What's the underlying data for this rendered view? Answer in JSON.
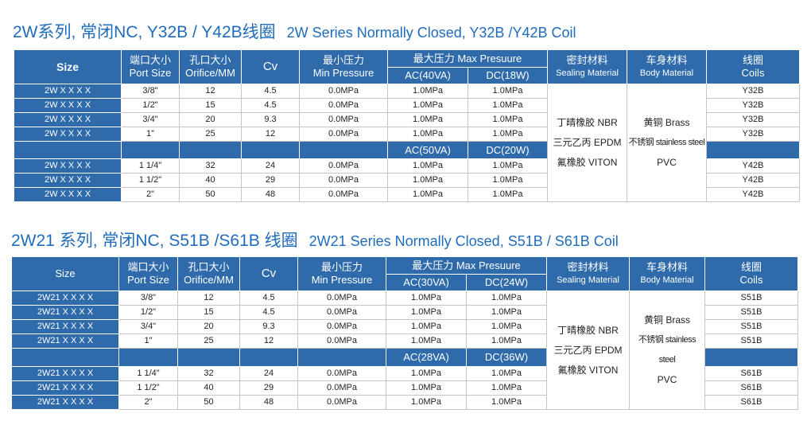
{
  "tables": [
    {
      "title_cn": "2W系列, 常闭NC, Y32B / Y42B线圈",
      "title_en": "2W Series Normally Closed, Y32B /Y42B Coil",
      "headers": {
        "size": "Size",
        "port_cn": "端口大小",
        "port_en": "Port Size",
        "orifice_cn": "孔口大小",
        "orifice_en": "Orifice/MM",
        "cv": "Cv",
        "min_cn": "最小压力",
        "min_en": "Min Pressure",
        "max": "最大压力  Max Presuure",
        "ac": "AC(40VA)",
        "dc": "DC(18W)",
        "seal_cn": "密封材料",
        "seal_en": "Sealing Material",
        "body_cn": "车身材料",
        "body_en": "Body Material",
        "coil_cn": "线圈",
        "coil_en": "Coils"
      },
      "group1": [
        [
          "2W X X X X",
          "3/8\"",
          "12",
          "4.5",
          "0.0MPa",
          "1.0MPa",
          "1.0MPa",
          "Y32B"
        ],
        [
          "2W X X X X",
          "1/2\"",
          "15",
          "4.5",
          "0.0MPa",
          "1.0MPa",
          "1.0MPa",
          "Y32B"
        ],
        [
          "2W X X X X",
          "3/4\"",
          "20",
          "9.3",
          "0.0MPa",
          "1.0MPa",
          "1.0MPa",
          "Y32B"
        ],
        [
          "2W X X X X",
          "1\"",
          "25",
          "12",
          "0.0MPa",
          "1.0MPa",
          "1.0MPa",
          "Y32B"
        ]
      ],
      "mid": {
        "ac": "AC(50VA)",
        "dc": "DC(20W)"
      },
      "group2": [
        [
          "2W X X X X",
          "1 1/4\"",
          "32",
          "24",
          "0.0MPa",
          "1.0MPa",
          "1.0MPa",
          "Y42B"
        ],
        [
          "2W X X X X",
          "1 1/2\"",
          "40",
          "29",
          "0.0MPa",
          "1.0MPa",
          "1.0MPa",
          "Y42B"
        ],
        [
          "2W X X X X",
          "2\"",
          "50",
          "48",
          "0.0MPa",
          "1.0MPa",
          "1.0MPa",
          "Y42B"
        ]
      ],
      "sealing": [
        "丁晴橡胶 NBR",
        "三元乙丙 EPDM",
        "氟橡胶 VITON"
      ],
      "body": [
        "黄铜 Brass",
        "不锈钢 stainless steel",
        "PVC"
      ]
    },
    {
      "title_cn": "2W21 系列, 常闭NC, S51B /S61B 线圈",
      "title_en": "2W21 Series Normally Closed, S51B / S61B Coil",
      "headers": {
        "size": "Size",
        "port_cn": "端口大小",
        "port_en": "Port Size",
        "orifice_cn": "孔口大小",
        "orifice_en": "Orifice/MM",
        "cv": "Cv",
        "min_cn": "最小压力",
        "min_en": "Min Pressure",
        "max": "最大压力  Max Presuure",
        "ac": "AC(30VA)",
        "dc": "DC(24W)",
        "seal_cn": "密封材料",
        "seal_en": "Sealing Material",
        "body_cn": "车身材料",
        "body_en": "Body Material",
        "coil_cn": "线圈",
        "coil_en": "Coils"
      },
      "group1": [
        [
          "2W21 X X X X",
          "3/8\"",
          "12",
          "4.5",
          "0.0MPa",
          "1.0MPa",
          "1.0MPa",
          "S51B"
        ],
        [
          "2W21 X X X X",
          "1/2\"",
          "15",
          "4.5",
          "0.0MPa",
          "1.0MPa",
          "1.0MPa",
          "S51B"
        ],
        [
          "2W21 X X X X",
          "3/4\"",
          "20",
          "9.3",
          "0.0MPa",
          "1.0MPa",
          "1.0MPa",
          "S51B"
        ],
        [
          "2W21 X X X X",
          "1\"",
          "25",
          "12",
          "0.0MPa",
          "1.0MPa",
          "1.0MPa",
          "S51B"
        ]
      ],
      "mid": {
        "ac": "AC(28VA)",
        "dc": "DC(36W)"
      },
      "group2": [
        [
          "2W21 X X X X",
          "1 1/4\"",
          "32",
          "24",
          "0.0MPa",
          "1.0MPa",
          "1.0MPa",
          "S61B"
        ],
        [
          "2W21 X X X X",
          "1 1/2\"",
          "40",
          "29",
          "0.0MPa",
          "1.0MPa",
          "1.0MPa",
          "S61B"
        ],
        [
          "2W21 X X X X",
          "2\"",
          "50",
          "48",
          "0.0MPa",
          "1.0MPa",
          "1.0MPa",
          "S61B"
        ]
      ],
      "sealing": [
        "丁晴橡胶 NBR",
        "三元乙丙 EPDM",
        "氟橡胶 VITON"
      ],
      "body": [
        "黄铜 Brass",
        "不锈钢 stainless steel",
        "PVC"
      ]
    }
  ]
}
